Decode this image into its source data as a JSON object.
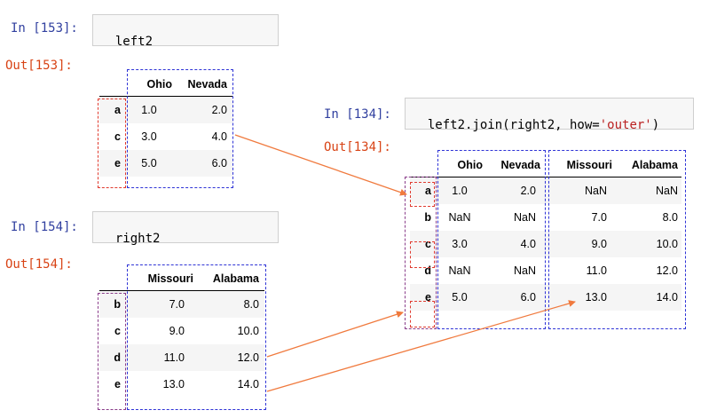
{
  "cells": [
    {
      "in_label": "In [153]:",
      "out_label": "Out[153]:",
      "code": "left2"
    },
    {
      "in_label": "In [154]:",
      "out_label": "Out[154]:",
      "code": "right2"
    },
    {
      "in_label": "In [134]:",
      "out_label": "Out[134]:",
      "code_prefix": "left2.join(right2, how=",
      "code_string": "'outer'",
      "code_suffix": ")"
    }
  ],
  "left2": {
    "columns": [
      "Ohio",
      "Nevada"
    ],
    "rows": [
      {
        "index": "a",
        "values": [
          "1.0",
          "2.0"
        ]
      },
      {
        "index": "c",
        "values": [
          "3.0",
          "4.0"
        ]
      },
      {
        "index": "e",
        "values": [
          "5.0",
          "6.0"
        ]
      }
    ]
  },
  "right2": {
    "columns": [
      "Missouri",
      "Alabama"
    ],
    "rows": [
      {
        "index": "b",
        "values": [
          "7.0",
          "8.0"
        ]
      },
      {
        "index": "c",
        "values": [
          "9.0",
          "10.0"
        ]
      },
      {
        "index": "d",
        "values": [
          "11.0",
          "12.0"
        ]
      },
      {
        "index": "e",
        "values": [
          "13.0",
          "14.0"
        ]
      }
    ]
  },
  "joined": {
    "columns": [
      "Ohio",
      "Nevada",
      "Missouri",
      "Alabama"
    ],
    "rows": [
      {
        "index": "a",
        "values": [
          "1.0",
          "2.0",
          "NaN",
          "NaN"
        ]
      },
      {
        "index": "b",
        "values": [
          "NaN",
          "NaN",
          "7.0",
          "8.0"
        ]
      },
      {
        "index": "c",
        "values": [
          "3.0",
          "4.0",
          "9.0",
          "10.0"
        ]
      },
      {
        "index": "d",
        "values": [
          "NaN",
          "NaN",
          "11.0",
          "12.0"
        ]
      },
      {
        "index": "e",
        "values": [
          "5.0",
          "6.0",
          "13.0",
          "14.0"
        ]
      }
    ]
  },
  "colors": {
    "prompt_in": "#303f9f",
    "prompt_out": "#d84315",
    "box_blue": "#2e33d6",
    "box_red": "#e03a2e",
    "box_purple": "#8a3d8a",
    "arrow": "#f07a3e"
  }
}
